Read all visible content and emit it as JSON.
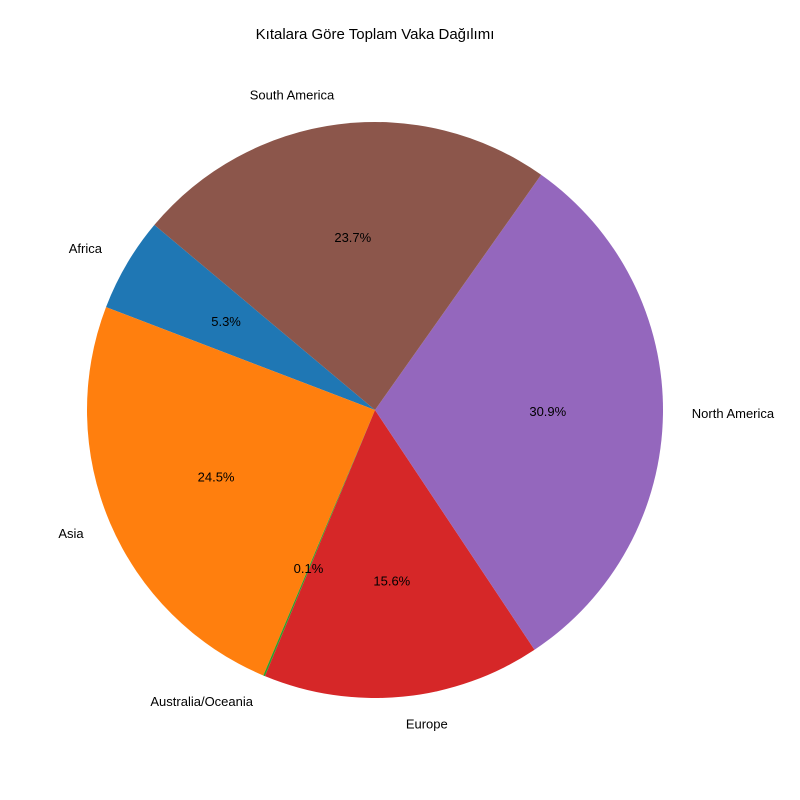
{
  "chart_data": {
    "type": "pie",
    "title": "Kıtalara Göre Toplam Vaka Dağılımı",
    "start_angle_deg": 140,
    "direction": "counterclockwise",
    "slices": [
      {
        "label": "Africa",
        "value": 5.3,
        "pct_label": "5.3%",
        "color": "#1f77b4"
      },
      {
        "label": "Asia",
        "value": 24.5,
        "pct_label": "24.5%",
        "color": "#ff7f0e"
      },
      {
        "label": "Australia/Oceania",
        "value": 0.1,
        "pct_label": "0.1%",
        "color": "#2ca02c"
      },
      {
        "label": "Europe",
        "value": 15.6,
        "pct_label": "15.6%",
        "color": "#d62728"
      },
      {
        "label": "North America",
        "value": 30.9,
        "pct_label": "30.9%",
        "color": "#9467bd"
      },
      {
        "label": "South America",
        "value": 23.7,
        "pct_label": "23.7%",
        "color": "#8c564b"
      }
    ]
  }
}
